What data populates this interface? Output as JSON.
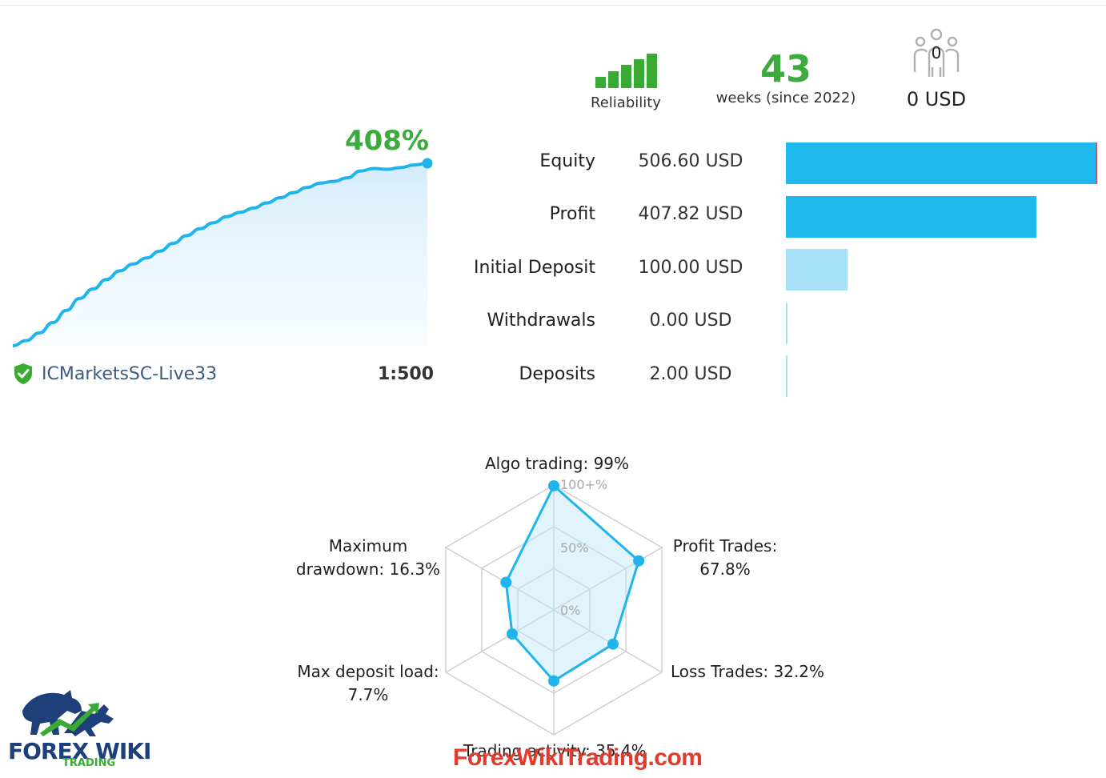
{
  "growth": {
    "percent": "408%",
    "series": [
      0,
      6,
      15,
      27,
      41,
      55,
      66,
      77,
      87,
      95,
      102,
      110,
      119,
      128,
      136,
      143,
      150,
      155,
      160,
      166,
      172,
      178,
      184,
      189,
      191,
      195,
      203,
      206,
      205,
      207,
      210,
      212
    ],
    "server": "ICMarketsSC-Live33",
    "leverage": "1:500",
    "color": "#1fb4ec"
  },
  "stats": {
    "reliability_label": "Reliability",
    "reliability_level": 5,
    "weeks_value": "43",
    "weeks_label": "weeks (since 2022)",
    "subscribers_count": "0",
    "subscribers_usd": "0 USD"
  },
  "account": {
    "rows": [
      {
        "label": "Equity",
        "value": "506.60 USD",
        "amount": 506.6
      },
      {
        "label": "Profit",
        "value": "407.82 USD",
        "amount": 407.82
      },
      {
        "label": "Initial Deposit",
        "value": "100.00 USD",
        "amount": 100.0
      },
      {
        "label": "Withdrawals",
        "value": "0.00 USD",
        "amount": 0.0
      },
      {
        "label": "Deposits",
        "value": "2.00 USD",
        "amount": 2.0
      }
    ],
    "bar_color": "#1fb9ee",
    "bar_color_light": "#a8e2f8"
  },
  "radar": {
    "scale_labels": [
      "100+%",
      "50%",
      "0%"
    ],
    "axes": [
      {
        "label": "Algo trading: 99%",
        "value": 99
      },
      {
        "label": "Profit Trades: 67.8%",
        "value": 67.8
      },
      {
        "label": "Loss Trades: 32.2%",
        "value": 32.2
      },
      {
        "label": "Trading activity: 35.4%",
        "value": 35.4
      },
      {
        "label": "Max deposit load: 7.7%",
        "value": 7.7
      },
      {
        "label": "Maximum drawdown: 16.3%",
        "value": 16.3
      }
    ],
    "labels_display": {
      "algo": "Algo trading: 99%",
      "profit_1": "Profit Trades:",
      "profit_2": "67.8%",
      "loss": "Loss Trades: 32.2%",
      "activity": "Trading activity: 35.4%",
      "deposit_1": "Max deposit load:",
      "deposit_2": "7.7%",
      "drawdown_1": "Maximum",
      "drawdown_2": "drawdown: 16.3%"
    }
  },
  "branding": {
    "logo_text": "FOREX WIKI",
    "logo_sub": "TRADING",
    "watermark": "ForexWikiTrading.com"
  }
}
